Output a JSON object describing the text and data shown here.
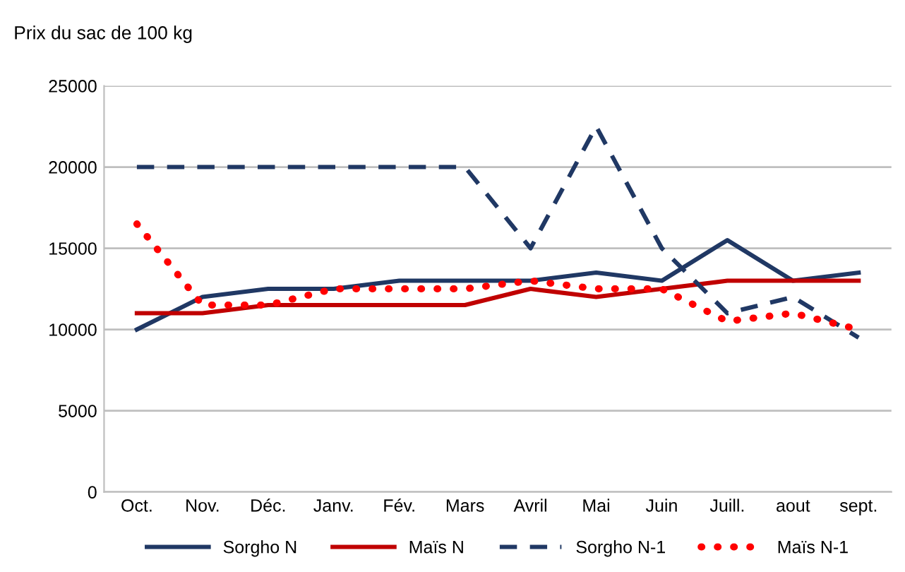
{
  "chart_data": {
    "type": "line",
    "ylabel": "Prix du sac de 100 kg",
    "categories": [
      "Oct.",
      "Nov.",
      "Déc.",
      "Janv.",
      "Fév.",
      "Mars",
      "Avril",
      "Mai",
      "Juin",
      "Juill.",
      "aout",
      "sept."
    ],
    "series": [
      {
        "name": "Sorgho N",
        "color": "#203864",
        "line_style": "solid",
        "values": [
          10000,
          12000,
          12500,
          12500,
          13000,
          13000,
          13000,
          13500,
          13000,
          15500,
          13000,
          13500
        ]
      },
      {
        "name": "Maïs N",
        "color": "#c00000",
        "line_style": "solid",
        "values": [
          11000,
          11000,
          11500,
          11500,
          11500,
          11500,
          12500,
          12000,
          12500,
          13000,
          13000,
          13000
        ]
      },
      {
        "name": "Sorgho N-1",
        "color": "#203864",
        "line_style": "dashed",
        "values": [
          20000,
          20000,
          20000,
          20000,
          20000,
          20000,
          15000,
          22500,
          15000,
          11000,
          12000,
          9500
        ]
      },
      {
        "name": "Maïs N-1",
        "color": "#ff0000",
        "line_style": "dotted",
        "values": [
          16500,
          11500,
          11500,
          12500,
          12500,
          12500,
          13000,
          12500,
          12500,
          10500,
          11000,
          10000
        ]
      }
    ],
    "ylim": [
      0,
      25000
    ],
    "yticks": [
      0,
      5000,
      10000,
      15000,
      20000,
      25000
    ],
    "grid": "y",
    "legend": "bottom",
    "marker": "none"
  }
}
